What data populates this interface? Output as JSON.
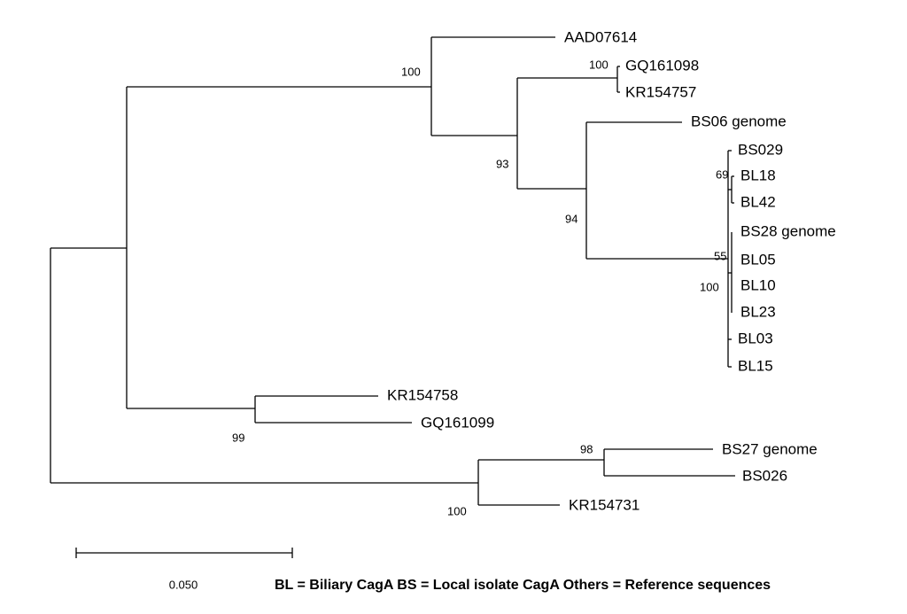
{
  "leaves": [
    "AAD07614",
    "GQ161098",
    "KR154757",
    "BS06 genome",
    "BS029",
    "BL18",
    "BL42",
    "BS28 genome",
    "BL05",
    "BL10",
    "BL23",
    "BL03",
    "BL15",
    "KR154758",
    "GQ161099",
    "BS27 genome",
    "BS026",
    "KR154731"
  ],
  "bootstrap": [
    100,
    100,
    93,
    94,
    69,
    55,
    100,
    99,
    98,
    100
  ],
  "scale_bar": {
    "label": "0.050"
  },
  "legend": "BL = Biliary CagA  BS = Local isolate CagA  Others = Reference sequences"
}
